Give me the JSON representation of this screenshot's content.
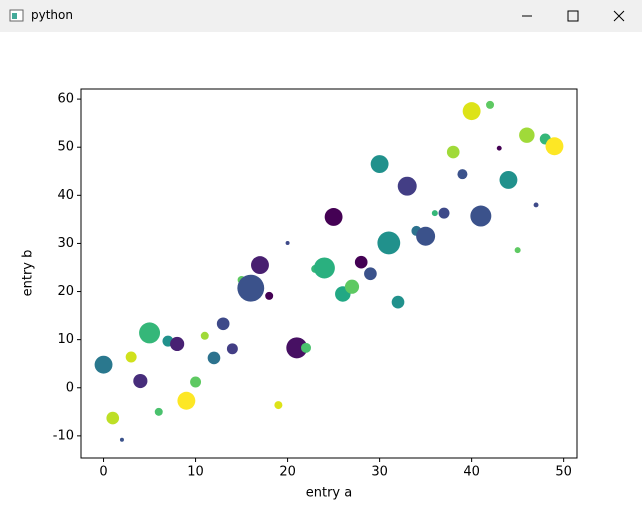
{
  "window": {
    "title": "python"
  },
  "chart_data": {
    "type": "scatter",
    "xlabel": "entry a",
    "ylabel": "entry b",
    "x": [
      0,
      1,
      2,
      3,
      4,
      5,
      6,
      7,
      8,
      9,
      10,
      11,
      12,
      13,
      14,
      15,
      16,
      17,
      18,
      19,
      20,
      21,
      22,
      23,
      24,
      25,
      26,
      27,
      28,
      29,
      30,
      31,
      32,
      33,
      34,
      35,
      36,
      37,
      38,
      39,
      40,
      41,
      42,
      43,
      44,
      45,
      46,
      47,
      48,
      49
    ],
    "y": [
      4.8,
      -6.3,
      -10.8,
      6.4,
      1.4,
      11.4,
      -5.0,
      9.7,
      9.1,
      -2.7,
      1.2,
      10.8,
      6.2,
      13.3,
      8.1,
      22.4,
      20.7,
      25.5,
      19.1,
      -3.6,
      30.1,
      8.3,
      8.3,
      24.7,
      24.9,
      35.5,
      19.5,
      21.0,
      26.1,
      23.7,
      46.5,
      30.1,
      17.8,
      41.9,
      32.6,
      31.5,
      36.3,
      36.3,
      49.0,
      44.4,
      57.5,
      35.7,
      58.8,
      49.8,
      43.2,
      28.6,
      52.5,
      38.0,
      51.7,
      50.2
    ],
    "sizes": [
      80,
      40,
      4,
      30,
      50,
      110,
      16,
      30,
      50,
      80,
      30,
      16,
      40,
      40,
      30,
      16,
      180,
      80,
      16,
      16,
      4,
      110,
      25,
      16,
      110,
      80,
      60,
      50,
      40,
      40,
      80,
      130,
      40,
      90,
      25,
      90,
      9,
      30,
      40,
      25,
      80,
      110,
      16,
      6,
      80,
      9,
      60,
      6,
      30,
      80
    ],
    "colors": [
      "#2a788e",
      "#bddf26",
      "#3b528b",
      "#d0e11c",
      "#472d7b",
      "#35b779",
      "#4ac16d",
      "#21918c",
      "#482173",
      "#fde725",
      "#5ec962",
      "#a0da39",
      "#2c728e",
      "#3e4a89",
      "#433e85",
      "#5ec962",
      "#3b528b",
      "#481f70",
      "#440154",
      "#dde318",
      "#3e4a89",
      "#471063",
      "#4ac16d",
      "#35b779",
      "#2ab07f",
      "#440154",
      "#22a884",
      "#5ec962",
      "#440154",
      "#3b528b",
      "#21918c",
      "#21918c",
      "#21918c",
      "#433e85",
      "#2c728e",
      "#3b528b",
      "#35b779",
      "#3e4a89",
      "#a0da39",
      "#3b528b",
      "#dde318",
      "#3b528b",
      "#5ec962",
      "#440154",
      "#21918c",
      "#5ec962",
      "#a0da39",
      "#3e4a89",
      "#35b779",
      "#fde725"
    ],
    "xlim": [
      -2.45,
      51.45
    ],
    "ylim": [
      -14.6,
      62.1
    ],
    "xticks": [
      0,
      10,
      20,
      30,
      40,
      50
    ],
    "yticks": [
      -10,
      0,
      10,
      20,
      30,
      40,
      50,
      60
    ]
  }
}
